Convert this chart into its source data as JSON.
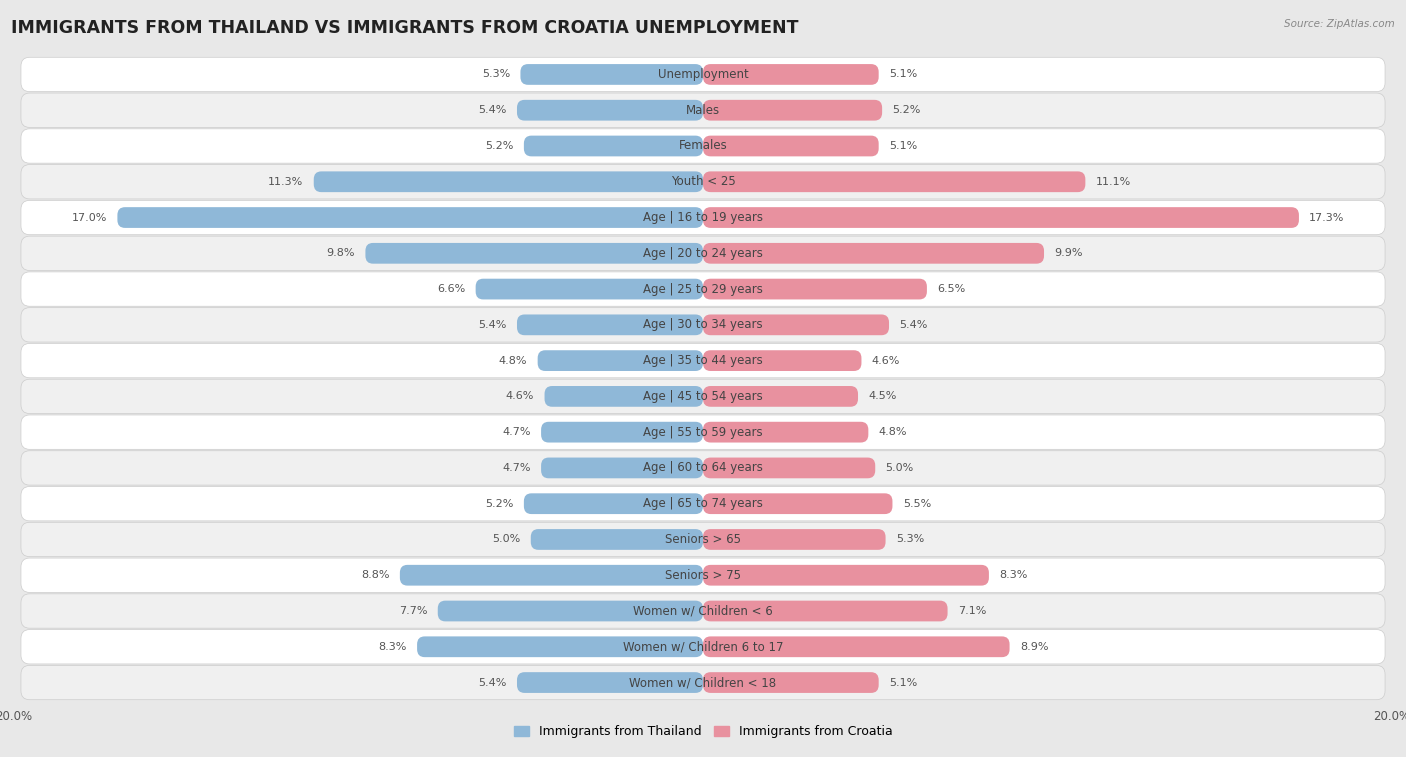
{
  "title": "IMMIGRANTS FROM THAILAND VS IMMIGRANTS FROM CROATIA UNEMPLOYMENT",
  "source": "Source: ZipAtlas.com",
  "categories": [
    "Unemployment",
    "Males",
    "Females",
    "Youth < 25",
    "Age | 16 to 19 years",
    "Age | 20 to 24 years",
    "Age | 25 to 29 years",
    "Age | 30 to 34 years",
    "Age | 35 to 44 years",
    "Age | 45 to 54 years",
    "Age | 55 to 59 years",
    "Age | 60 to 64 years",
    "Age | 65 to 74 years",
    "Seniors > 65",
    "Seniors > 75",
    "Women w/ Children < 6",
    "Women w/ Children 6 to 17",
    "Women w/ Children < 18"
  ],
  "thailand_values": [
    5.3,
    5.4,
    5.2,
    11.3,
    17.0,
    9.8,
    6.6,
    5.4,
    4.8,
    4.6,
    4.7,
    4.7,
    5.2,
    5.0,
    8.8,
    7.7,
    8.3,
    5.4
  ],
  "croatia_values": [
    5.1,
    5.2,
    5.1,
    11.1,
    17.3,
    9.9,
    6.5,
    5.4,
    4.6,
    4.5,
    4.8,
    5.0,
    5.5,
    5.3,
    8.3,
    7.1,
    8.9,
    5.1
  ],
  "thailand_color": "#8fb8d8",
  "croatia_color": "#e8919f",
  "background_color": "#e8e8e8",
  "row_color_even": "#ffffff",
  "row_color_odd": "#f0f0f0",
  "xlim": 20.0,
  "bar_height": 0.58,
  "legend_thailand": "Immigrants from Thailand",
  "legend_croatia": "Immigrants from Croatia",
  "title_fontsize": 12.5,
  "label_fontsize": 8.5,
  "value_fontsize": 8.0,
  "axis_fontsize": 8.5
}
